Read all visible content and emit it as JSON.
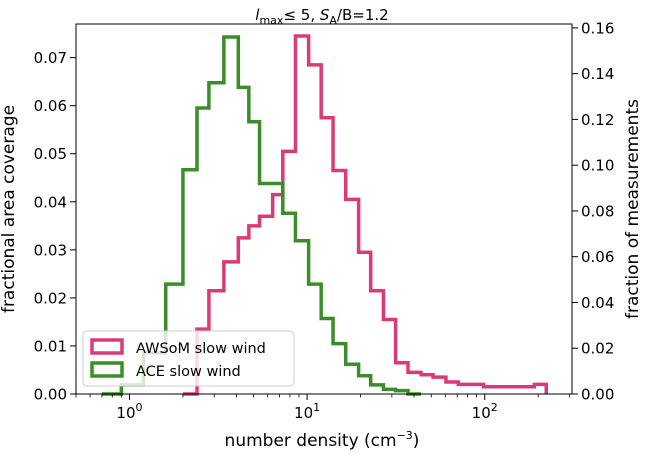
{
  "chart_data": {
    "type": "histogram-step",
    "title": {
      "l": "l",
      "lsub": "max",
      "mid": "≤ 5, ",
      "s": "S",
      "ssub": "A",
      "tail": "/B=1.2"
    },
    "xlabel": {
      "text": "number density (cm",
      "sup": "−3",
      "close": ")"
    },
    "ylabel_left": "fractional area coverage",
    "ylabel_right": "fraction of measurements",
    "xscale": "log",
    "xlim": [
      0.5,
      310
    ],
    "ylim_left": [
      0,
      0.077
    ],
    "ylim_right": [
      0,
      0.1617
    ],
    "x_ticks": [
      {
        "value": 1,
        "base": "10",
        "exp": "0"
      },
      {
        "value": 10,
        "base": "10",
        "exp": "1"
      },
      {
        "value": 100,
        "base": "10",
        "exp": "2"
      }
    ],
    "y_ticks_left": [
      "0.00",
      "0.01",
      "0.02",
      "0.03",
      "0.04",
      "0.05",
      "0.06",
      "0.07"
    ],
    "y_ticks_right": [
      "0.00",
      "0.02",
      "0.04",
      "0.06",
      "0.08",
      "0.10",
      "0.12",
      "0.14",
      "0.16"
    ],
    "series": [
      {
        "name": "AWSoM slow wind",
        "axis": "left",
        "color": "#dc3977",
        "edges": [
          2.0,
          2.4,
          2.8,
          3.4,
          4.1,
          4.7,
          5.4,
          6.4,
          7.3,
          8.6,
          10.2,
          12.0,
          14.0,
          16.5,
          19.5,
          22.8,
          26.9,
          31.5,
          37.0,
          43.8,
          51.2,
          60.5,
          71.0,
          83.0,
          98.5,
          116.0,
          137.0,
          161.0,
          190.0,
          222.0
        ],
        "values": [
          0.0,
          0.0135,
          0.0215,
          0.0275,
          0.0325,
          0.035,
          0.037,
          0.0415,
          0.0505,
          0.0745,
          0.0685,
          0.0575,
          0.0465,
          0.0405,
          0.0295,
          0.0215,
          0.0155,
          0.0065,
          0.0045,
          0.004,
          0.0035,
          0.0025,
          0.002,
          0.002,
          0.0015,
          0.0015,
          0.0015,
          0.0015,
          0.002
        ]
      },
      {
        "name": "ACE slow wind",
        "axis": "right",
        "color": "#3b8d2a",
        "edges": [
          0.7,
          0.9,
          1.2,
          1.6,
          2.0,
          2.4,
          2.8,
          3.4,
          4.1,
          4.7,
          5.4,
          6.4,
          7.3,
          8.6,
          10.2,
          12.0,
          14.0,
          16.5,
          19.5,
          22.8,
          26.9,
          31.5,
          37.0,
          43.8
        ],
        "values": [
          0.0,
          0.004,
          0.018,
          0.048,
          0.098,
          0.125,
          0.136,
          0.156,
          0.134,
          0.119,
          0.092,
          0.092,
          0.079,
          0.067,
          0.048,
          0.033,
          0.022,
          0.013,
          0.008,
          0.004,
          0.002,
          0.0015,
          0.0
        ]
      }
    ],
    "legend": {
      "position": "lower-left",
      "entries": [
        "AWSoM slow wind",
        "ACE slow wind"
      ]
    }
  }
}
